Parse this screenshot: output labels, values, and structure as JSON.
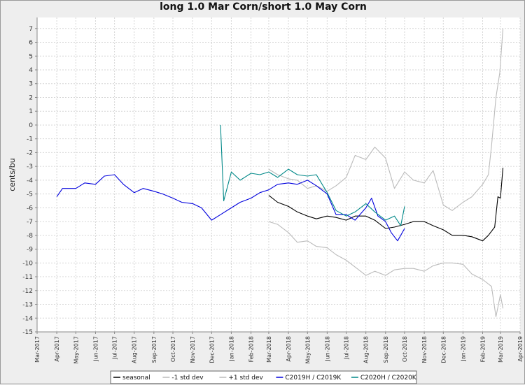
{
  "chart_data": {
    "type": "line",
    "title": "long 1.0 Mar Corn/short 1.0 May Corn",
    "ylabel": "cents/bu",
    "xlabel": "",
    "ylim": [
      -15,
      7.8
    ],
    "xlim": [
      "2017-03-01",
      "2019-04-01"
    ],
    "y_ticks": [
      7,
      6,
      5,
      4,
      3,
      2,
      1,
      0,
      -1,
      -2,
      -3,
      -4,
      -5,
      -6,
      -7,
      -8,
      -9,
      -10,
      -11,
      -12,
      -13,
      -14,
      -15
    ],
    "x_ticks": [
      "Mar-2017",
      "Apr-2017",
      "May-2017",
      "Jun-2017",
      "Jul-2017",
      "Aug-2017",
      "Sep-2017",
      "Oct-2017",
      "Nov-2017",
      "Dec-2017",
      "Jan-2018",
      "Feb-2018",
      "Mar-2018",
      "Apr-2018",
      "May-2018",
      "Jun-2018",
      "Jul-2018",
      "Aug-2018",
      "Sep-2018",
      "Oct-2018",
      "Nov-2018",
      "Dec-2018",
      "Jan-2019",
      "Feb-2019",
      "Mar-2019",
      "Apr-2019"
    ],
    "grid": true,
    "legend_position": "bottom",
    "series": [
      {
        "name": "seasonal",
        "color": "#000000",
        "points": [
          [
            "2018-03-01",
            -5.1
          ],
          [
            "2018-03-15",
            -5.6
          ],
          [
            "2018-04-01",
            -5.9
          ],
          [
            "2018-04-15",
            -6.3
          ],
          [
            "2018-05-01",
            -6.6
          ],
          [
            "2018-05-15",
            -6.8
          ],
          [
            "2018-06-01",
            -6.6
          ],
          [
            "2018-06-15",
            -6.7
          ],
          [
            "2018-07-01",
            -6.9
          ],
          [
            "2018-07-15",
            -6.6
          ],
          [
            "2018-08-01",
            -6.6
          ],
          [
            "2018-08-15",
            -6.9
          ],
          [
            "2018-09-01",
            -7.5
          ],
          [
            "2018-09-15",
            -7.4
          ],
          [
            "2018-10-01",
            -7.2
          ],
          [
            "2018-10-15",
            -7.0
          ],
          [
            "2018-11-01",
            -7.0
          ],
          [
            "2018-11-15",
            -7.3
          ],
          [
            "2018-12-01",
            -7.6
          ],
          [
            "2018-12-15",
            -8.0
          ],
          [
            "2019-01-01",
            -8.0
          ],
          [
            "2019-01-15",
            -8.1
          ],
          [
            "2019-02-01",
            -8.4
          ],
          [
            "2019-02-10",
            -8.0
          ],
          [
            "2019-02-20",
            -7.4
          ],
          [
            "2019-02-25",
            -5.2
          ],
          [
            "2019-03-01",
            -5.3
          ],
          [
            "2019-03-05",
            -3.1
          ]
        ]
      },
      {
        "name": "-1 std dev",
        "color": "#bbbbbb",
        "points": [
          [
            "2018-03-01",
            -7.0
          ],
          [
            "2018-03-15",
            -7.2
          ],
          [
            "2018-04-01",
            -7.8
          ],
          [
            "2018-04-15",
            -8.5
          ],
          [
            "2018-05-01",
            -8.4
          ],
          [
            "2018-05-15",
            -8.8
          ],
          [
            "2018-06-01",
            -8.9
          ],
          [
            "2018-06-15",
            -9.4
          ],
          [
            "2018-07-01",
            -9.8
          ],
          [
            "2018-07-15",
            -10.3
          ],
          [
            "2018-08-01",
            -10.9
          ],
          [
            "2018-08-15",
            -10.6
          ],
          [
            "2018-09-01",
            -10.9
          ],
          [
            "2018-09-15",
            -10.5
          ],
          [
            "2018-10-01",
            -10.4
          ],
          [
            "2018-10-15",
            -10.4
          ],
          [
            "2018-11-01",
            -10.6
          ],
          [
            "2018-11-15",
            -10.2
          ],
          [
            "2018-12-01",
            -10.0
          ],
          [
            "2018-12-15",
            -10.0
          ],
          [
            "2019-01-01",
            -10.1
          ],
          [
            "2019-01-15",
            -10.8
          ],
          [
            "2019-02-01",
            -11.2
          ],
          [
            "2019-02-15",
            -11.7
          ],
          [
            "2019-02-22",
            -13.9
          ],
          [
            "2019-03-01",
            -12.3
          ],
          [
            "2019-03-05",
            -13.3
          ]
        ]
      },
      {
        "name": "+1 std dev",
        "color": "#bbbbbb",
        "points": [
          [
            "2018-03-01",
            -3.2
          ],
          [
            "2018-03-15",
            -3.6
          ],
          [
            "2018-04-01",
            -3.9
          ],
          [
            "2018-04-15",
            -4.0
          ],
          [
            "2018-05-01",
            -4.6
          ],
          [
            "2018-05-15",
            -4.4
          ],
          [
            "2018-06-01",
            -4.8
          ],
          [
            "2018-06-15",
            -4.4
          ],
          [
            "2018-07-01",
            -3.8
          ],
          [
            "2018-07-15",
            -2.2
          ],
          [
            "2018-08-01",
            -2.5
          ],
          [
            "2018-08-15",
            -1.6
          ],
          [
            "2018-09-01",
            -2.4
          ],
          [
            "2018-09-15",
            -4.6
          ],
          [
            "2018-10-01",
            -3.4
          ],
          [
            "2018-10-15",
            -4.0
          ],
          [
            "2018-11-01",
            -4.2
          ],
          [
            "2018-11-15",
            -3.3
          ],
          [
            "2018-12-01",
            -5.8
          ],
          [
            "2018-12-15",
            -6.2
          ],
          [
            "2019-01-01",
            -5.6
          ],
          [
            "2019-01-15",
            -5.2
          ],
          [
            "2019-02-01",
            -4.3
          ],
          [
            "2019-02-10",
            -3.6
          ],
          [
            "2019-02-15",
            -1.5
          ],
          [
            "2019-02-22",
            2.0
          ],
          [
            "2019-02-28",
            3.8
          ],
          [
            "2019-03-05",
            7.0
          ]
        ]
      },
      {
        "name": "C2019H / C2019K",
        "color": "#0000dd",
        "points": [
          [
            "2017-04-01",
            -5.2
          ],
          [
            "2017-04-10",
            -4.6
          ],
          [
            "2017-05-01",
            -4.6
          ],
          [
            "2017-05-15",
            -4.2
          ],
          [
            "2017-06-01",
            -4.3
          ],
          [
            "2017-06-15",
            -3.7
          ],
          [
            "2017-07-01",
            -3.6
          ],
          [
            "2017-07-15",
            -4.3
          ],
          [
            "2017-08-01",
            -4.9
          ],
          [
            "2017-08-15",
            -4.6
          ],
          [
            "2017-09-01",
            -4.8
          ],
          [
            "2017-09-15",
            -5.0
          ],
          [
            "2017-10-01",
            -5.3
          ],
          [
            "2017-10-15",
            -5.6
          ],
          [
            "2017-11-01",
            -5.7
          ],
          [
            "2017-11-15",
            -6.0
          ],
          [
            "2017-12-01",
            -6.9
          ],
          [
            "2017-12-15",
            -6.5
          ],
          [
            "2018-01-01",
            -6.0
          ],
          [
            "2018-01-15",
            -5.6
          ],
          [
            "2018-02-01",
            -5.3
          ],
          [
            "2018-02-15",
            -4.9
          ],
          [
            "2018-03-01",
            -4.7
          ],
          [
            "2018-03-15",
            -4.3
          ],
          [
            "2018-04-01",
            -4.2
          ],
          [
            "2018-04-15",
            -4.3
          ],
          [
            "2018-05-01",
            -4.0
          ],
          [
            "2018-05-15",
            -4.4
          ],
          [
            "2018-06-01",
            -5.0
          ],
          [
            "2018-06-15",
            -6.5
          ],
          [
            "2018-07-01",
            -6.5
          ],
          [
            "2018-07-15",
            -6.9
          ],
          [
            "2018-08-01",
            -6.0
          ],
          [
            "2018-08-10",
            -5.3
          ],
          [
            "2018-08-20",
            -6.6
          ],
          [
            "2018-09-01",
            -7.0
          ],
          [
            "2018-09-10",
            -7.8
          ],
          [
            "2018-09-20",
            -8.4
          ],
          [
            "2018-10-01",
            -7.5
          ]
        ]
      },
      {
        "name": "C2020H / C2020K",
        "color": "#008888",
        "points": [
          [
            "2017-12-15",
            0.0
          ],
          [
            "2017-12-20",
            -5.5
          ],
          [
            "2018-01-01",
            -3.4
          ],
          [
            "2018-01-15",
            -4.0
          ],
          [
            "2018-02-01",
            -3.5
          ],
          [
            "2018-02-15",
            -3.6
          ],
          [
            "2018-03-01",
            -3.4
          ],
          [
            "2018-03-15",
            -3.8
          ],
          [
            "2018-04-01",
            -3.2
          ],
          [
            "2018-04-15",
            -3.6
          ],
          [
            "2018-05-01",
            -3.7
          ],
          [
            "2018-05-15",
            -3.6
          ],
          [
            "2018-06-01",
            -4.9
          ],
          [
            "2018-06-15",
            -6.2
          ],
          [
            "2018-07-01",
            -6.6
          ],
          [
            "2018-07-15",
            -6.3
          ],
          [
            "2018-08-01",
            -5.7
          ],
          [
            "2018-08-15",
            -6.3
          ],
          [
            "2018-09-01",
            -6.9
          ],
          [
            "2018-09-15",
            -6.6
          ],
          [
            "2018-09-25",
            -7.3
          ],
          [
            "2018-10-01",
            -5.9
          ]
        ]
      }
    ]
  }
}
